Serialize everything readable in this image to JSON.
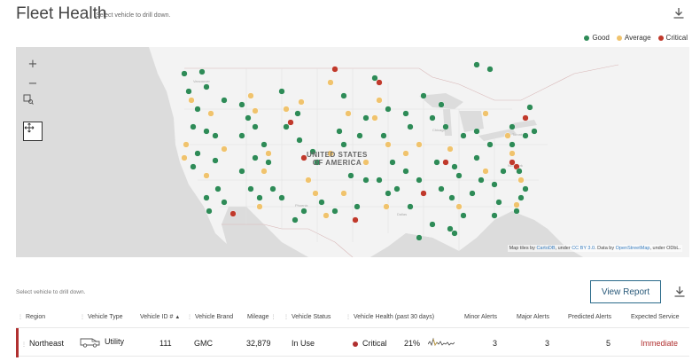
{
  "header": {
    "title": "Fleet Health",
    "subtitle": "Select vehicle to drill down."
  },
  "legend": [
    {
      "label": "Good",
      "color": "#2e8b57"
    },
    {
      "label": "Average",
      "color": "#f0c36d"
    },
    {
      "label": "Critical",
      "color": "#c0392b"
    }
  ],
  "map": {
    "controls": [
      "zoom-in",
      "zoom-out",
      "box-zoom",
      "pan"
    ],
    "country_label_line1": "UNITED STATES",
    "country_label_line2": "OF AMERICA",
    "attribution": {
      "prefix": "Map tiles by ",
      "link1": "CartoDB",
      "mid1": ", under ",
      "link2": "CC BY 3.0",
      "mid2": ". Data by ",
      "link3": "OpenStreetMap",
      "suffix": ", under ODbL."
    }
  },
  "table_hint": "Select vehicle to drill down.",
  "view_report_label": "View Report",
  "table": {
    "columns": [
      "Region",
      "Vehicle Type",
      "Vehicle ID #",
      "Vehicle Brand",
      "Mileage",
      "Vehicle Status",
      "Vehicle Health (past 30 days)",
      "Minor Alerts",
      "Major Alerts",
      "Predicted Alerts",
      "Expected Service"
    ],
    "rows": [
      {
        "region": "Northeast",
        "vehicle_type": "Utility",
        "vehicle_id": "111",
        "brand": "GMC",
        "mileage": "32,879",
        "status": "In Use",
        "health_label": "Critical",
        "health_pct": "21%",
        "minor": "3",
        "major": "3",
        "predicted": "5",
        "expected": "Immediate"
      }
    ]
  }
}
